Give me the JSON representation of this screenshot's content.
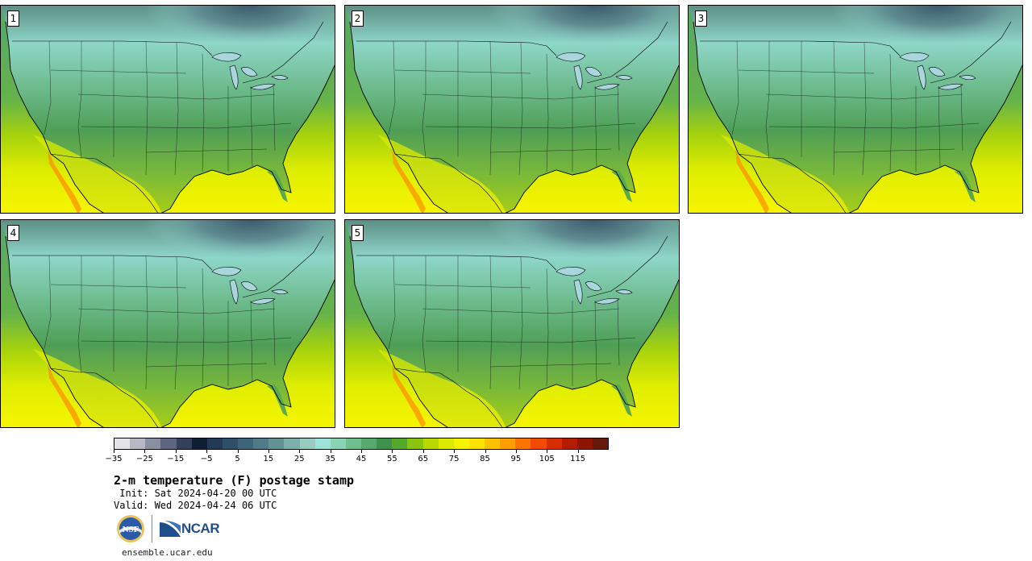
{
  "panels": [
    {
      "label": "1"
    },
    {
      "label": "2"
    },
    {
      "label": "3"
    },
    {
      "label": "4"
    },
    {
      "label": "5"
    }
  ],
  "colorbar": {
    "colors": [
      "#e4e4e8",
      "#b6b8c4",
      "#8a8fa2",
      "#5e6580",
      "#34405c",
      "#0f1e34",
      "#223a54",
      "#2f4f69",
      "#3d6478",
      "#4f7a86",
      "#649293",
      "#7eaeaa",
      "#99cbbf",
      "#9ee3d8",
      "#88d4b5",
      "#6fbf8f",
      "#58a96e",
      "#3f914e",
      "#56a82c",
      "#8ac310",
      "#b9d900",
      "#ddeb00",
      "#f4f400",
      "#ffe300",
      "#ffc200",
      "#ff9e00",
      "#ff7300",
      "#f24a00",
      "#d62e00",
      "#b31c00",
      "#8f1400",
      "#661a0a"
    ],
    "tick_labels": [
      "−35",
      "−25",
      "−15",
      "−5",
      "5",
      "15",
      "25",
      "35",
      "45",
      "55",
      "65",
      "75",
      "85",
      "95",
      "105",
      "115"
    ]
  },
  "title": "2-m temperature (F) postage stamp",
  "init": " Init: Sat 2024-04-20 00 UTC",
  "valid": "Valid: Wed 2024-04-24 06 UTC",
  "logos": {
    "nsf": "NSF",
    "ncar": "NCAR"
  },
  "footer": "ensemble.ucar.edu"
}
